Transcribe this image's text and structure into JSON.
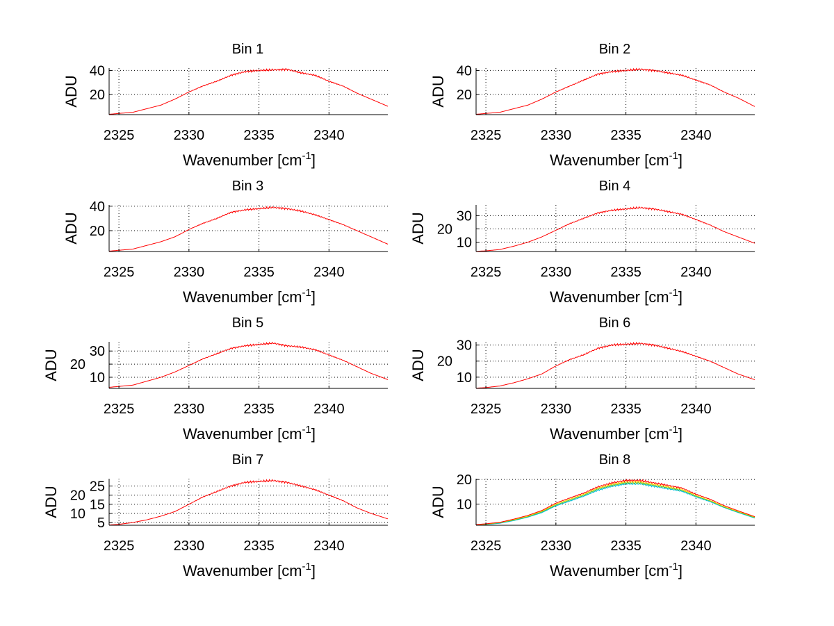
{
  "chart_data": [
    {
      "type": "line",
      "title": "Bin 1",
      "xlabel": "Wavenumber [cm",
      "xlabel_sup": "-1",
      "xlabel_close": "]",
      "ylabel": "ADU",
      "xlim": [
        2324.3,
        2344.2
      ],
      "xticks": [
        2325,
        2330,
        2335,
        2340
      ],
      "ylim": [
        3,
        42
      ],
      "yticks": [
        20,
        40
      ],
      "grid": true,
      "x": [
        2324,
        2325,
        2326,
        2327,
        2328,
        2329,
        2330,
        2331,
        2332,
        2333,
        2334,
        2335,
        2336,
        2337,
        2338,
        2339,
        2340,
        2341,
        2342,
        2343,
        2344
      ],
      "series": [
        {
          "name": "red",
          "color": "#ff0000",
          "values": [
            3,
            4,
            5,
            8,
            11,
            16,
            22,
            27,
            31,
            36,
            39,
            40,
            40.5,
            41,
            38,
            36,
            31,
            27,
            21,
            16,
            11
          ]
        }
      ]
    },
    {
      "type": "line",
      "title": "Bin 2",
      "xlabel": "Wavenumber [cm",
      "xlabel_sup": "-1",
      "xlabel_close": "]",
      "ylabel": "ADU",
      "xlim": [
        2324.3,
        2344.2
      ],
      "xticks": [
        2325,
        2330,
        2335,
        2340
      ],
      "ylim": [
        3,
        42
      ],
      "yticks": [
        20,
        40
      ],
      "grid": true,
      "x": [
        2324,
        2325,
        2326,
        2327,
        2328,
        2329,
        2330,
        2331,
        2332,
        2333,
        2334,
        2335,
        2336,
        2337,
        2338,
        2339,
        2340,
        2341,
        2342,
        2343,
        2344
      ],
      "series": [
        {
          "name": "red",
          "color": "#ff0000",
          "values": [
            3,
            4,
            5,
            8,
            11,
            16,
            22,
            27,
            32,
            37,
            39,
            40,
            41,
            40,
            38,
            36,
            32,
            28,
            22,
            17,
            11
          ]
        }
      ]
    },
    {
      "type": "line",
      "title": "Bin 3",
      "xlabel": "Wavenumber [cm",
      "xlabel_sup": "-1",
      "xlabel_close": "]",
      "ylabel": "ADU",
      "xlim": [
        2324.3,
        2344.2
      ],
      "xticks": [
        2325,
        2330,
        2335,
        2340
      ],
      "ylim": [
        3,
        41
      ],
      "yticks": [
        20,
        40
      ],
      "grid": true,
      "x": [
        2324,
        2325,
        2326,
        2327,
        2328,
        2329,
        2330,
        2331,
        2332,
        2333,
        2334,
        2335,
        2336,
        2337,
        2338,
        2339,
        2340,
        2341,
        2342,
        2343,
        2344
      ],
      "series": [
        {
          "name": "red",
          "color": "#ff0000",
          "values": [
            3,
            4,
            5,
            8,
            11,
            15,
            21,
            26,
            30,
            35,
            37,
            38,
            39,
            38,
            36,
            33,
            29,
            25,
            20,
            15,
            10
          ]
        }
      ]
    },
    {
      "type": "line",
      "title": "Bin 4",
      "xlabel": "Wavenumber [cm",
      "xlabel_sup": "-1",
      "xlabel_close": "]",
      "ylabel": "ADU",
      "xlim": [
        2324.3,
        2344.2
      ],
      "xticks": [
        2325,
        2330,
        2335,
        2340
      ],
      "ylim": [
        3,
        38
      ],
      "yticks": [
        10,
        20,
        30
      ],
      "grid": true,
      "x": [
        2324,
        2325,
        2326,
        2327,
        2328,
        2329,
        2330,
        2331,
        2332,
        2333,
        2334,
        2335,
        2336,
        2337,
        2338,
        2339,
        2340,
        2341,
        2342,
        2343,
        2344
      ],
      "series": [
        {
          "name": "red",
          "color": "#ff0000",
          "values": [
            3,
            3.5,
            4.5,
            7,
            10,
            14,
            19,
            24,
            28,
            32,
            34,
            35,
            36,
            35,
            33,
            31,
            27,
            23,
            18,
            14,
            10
          ]
        }
      ]
    },
    {
      "type": "line",
      "title": "Bin 5",
      "xlabel": "Wavenumber [cm",
      "xlabel_sup": "-1",
      "xlabel_close": "]",
      "ylabel": "ADU",
      "xlim": [
        2324.3,
        2344.2
      ],
      "xticks": [
        2325,
        2330,
        2335,
        2340
      ],
      "ylim": [
        1.5,
        37
      ],
      "yticks": [
        10,
        20,
        30
      ],
      "grid": true,
      "x": [
        2324,
        2325,
        2326,
        2327,
        2328,
        2329,
        2330,
        2331,
        2332,
        2333,
        2334,
        2335,
        2336,
        2337,
        2338,
        2339,
        2340,
        2341,
        2342,
        2343,
        2344
      ],
      "series": [
        {
          "name": "red",
          "color": "#ff0000",
          "values": [
            2,
            3,
            4,
            7,
            10,
            14,
            19,
            24,
            28,
            32,
            34,
            35,
            36,
            34,
            33,
            31,
            27,
            23,
            18,
            13,
            9
          ]
        }
      ]
    },
    {
      "type": "line",
      "title": "Bin 6",
      "xlabel": "Wavenumber [cm",
      "xlabel_sup": "-1",
      "xlabel_close": "]",
      "ylabel": "ADU",
      "xlim": [
        2324.3,
        2344.2
      ],
      "xticks": [
        2325,
        2330,
        2335,
        2340
      ],
      "ylim": [
        3,
        32
      ],
      "yticks": [
        10,
        20,
        30
      ],
      "grid": true,
      "x": [
        2324,
        2325,
        2326,
        2327,
        2328,
        2329,
        2330,
        2331,
        2332,
        2333,
        2334,
        2335,
        2336,
        2337,
        2338,
        2339,
        2340,
        2341,
        2342,
        2343,
        2344
      ],
      "series": [
        {
          "name": "red",
          "color": "#ff0000",
          "values": [
            3,
            3.5,
            4.5,
            6.5,
            9,
            12,
            17,
            21,
            24,
            28,
            30,
            30.5,
            31,
            30,
            28,
            26,
            23,
            20,
            16,
            12,
            9
          ]
        }
      ]
    },
    {
      "type": "line",
      "title": "Bin 7",
      "xlabel": "Wavenumber [cm",
      "xlabel_sup": "-1",
      "xlabel_close": "]",
      "ylabel": "ADU",
      "xlim": [
        2324.3,
        2344.2
      ],
      "xticks": [
        2325,
        2330,
        2335,
        2340
      ],
      "ylim": [
        3.5,
        29
      ],
      "yticks": [
        5,
        10,
        15,
        20,
        25
      ],
      "grid": true,
      "x": [
        2324,
        2325,
        2326,
        2327,
        2328,
        2329,
        2330,
        2331,
        2332,
        2333,
        2334,
        2335,
        2336,
        2337,
        2338,
        2339,
        2340,
        2341,
        2342,
        2343,
        2344
      ],
      "series": [
        {
          "name": "red",
          "color": "#ff0000",
          "values": [
            3.5,
            4,
            5,
            6.5,
            8.5,
            11,
            15,
            19,
            22,
            25,
            27,
            27.5,
            28,
            27,
            25,
            23,
            20,
            17,
            13,
            10,
            7.5
          ]
        }
      ]
    },
    {
      "type": "line",
      "title": "Bin 8",
      "xlabel": "Wavenumber [cm",
      "xlabel_sup": "-1",
      "xlabel_close": "]",
      "ylabel": "ADU",
      "xlim": [
        2324.3,
        2344.2
      ],
      "xticks": [
        2325,
        2330,
        2335,
        2340
      ],
      "ylim": [
        1.4,
        20.3
      ],
      "yticks": [
        10,
        20
      ],
      "grid": true,
      "x": [
        2324,
        2325,
        2326,
        2327,
        2328,
        2329,
        2330,
        2331,
        2332,
        2333,
        2334,
        2335,
        2336,
        2337,
        2338,
        2339,
        2340,
        2341,
        2342,
        2343,
        2344
      ],
      "series": [
        {
          "name": "cyan",
          "color": "#00bfe0",
          "values": [
            1.2,
            1.7,
            2.2,
            3.3,
            4.7,
            6.5,
            9.3,
            11.2,
            13.2,
            15.6,
            17.2,
            18.2,
            18.2,
            17.2,
            16.2,
            15.2,
            12.9,
            11,
            8.6,
            6.6,
            4.7
          ]
        },
        {
          "name": "green",
          "color": "#40c040",
          "values": [
            1.3,
            1.8,
            2.4,
            3.5,
            4.9,
            6.8,
            9.6,
            11.6,
            13.6,
            16.1,
            17.6,
            18.6,
            18.6,
            17.6,
            16.6,
            15.6,
            13.2,
            11.3,
            8.8,
            6.8,
            4.9
          ]
        },
        {
          "name": "yellow",
          "color": "#ffd000",
          "values": [
            1.4,
            1.9,
            2.5,
            3.7,
            5.1,
            7.1,
            10,
            12,
            14,
            16.5,
            18,
            19,
            19,
            18,
            17,
            16,
            13.5,
            11.5,
            9,
            7,
            5.1
          ]
        },
        {
          "name": "red",
          "color": "#ff0000",
          "values": [
            1.5,
            2,
            2.6,
            3.9,
            5.4,
            7.4,
            10.4,
            12.5,
            14.5,
            17,
            18.6,
            19.6,
            19.6,
            18.6,
            17.6,
            16.5,
            14,
            12,
            9.4,
            7.3,
            5.3
          ]
        }
      ]
    }
  ]
}
